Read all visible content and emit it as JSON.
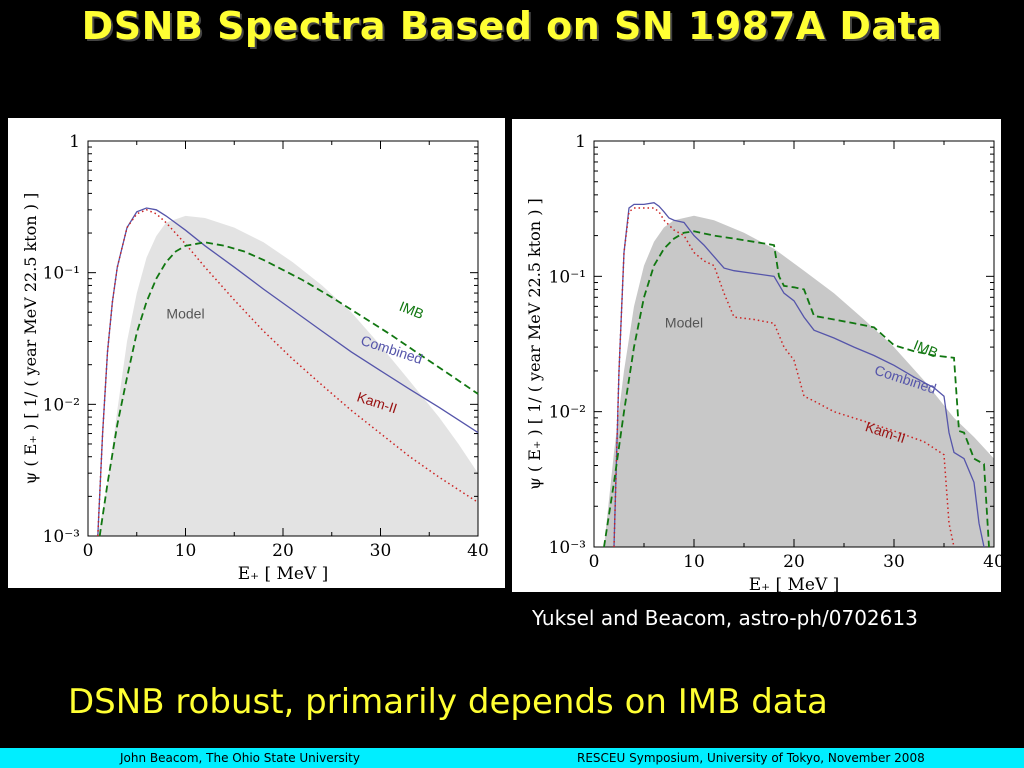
{
  "slide": {
    "title": "DSNB Spectra Based on SN 1987A Data",
    "citation": "Yuksel and Beacom, astro-ph/0702613",
    "summary": "DSNB robust, primarily depends on IMB data",
    "footer_left": "John Beacom, The Ohio State University",
    "footer_right": "RESCEU Symposium, University of Tokyo, November 2008"
  },
  "colors": {
    "background": "#000000",
    "title": "#ffff33",
    "footer_bar": "#00eeff",
    "model_left": "#e3e3e3",
    "model_right": "#c8c8c8",
    "combined": "#5555aa",
    "imb": "#117711",
    "kam": "#cc2222",
    "kam_label": "#991111"
  },
  "chart_data": [
    {
      "type": "line",
      "x_scale": "linear",
      "y_scale": "log",
      "xlim": [
        0,
        40
      ],
      "ylim": [
        0.001,
        1
      ],
      "xticks": [
        "0",
        "10",
        "20",
        "30",
        "40"
      ],
      "yticks": [
        "1",
        "10⁻¹",
        "10⁻²",
        "10⁻³"
      ],
      "xlabel": "E₊ [ MeV ]",
      "ylabel": "ψ ( E₊ )   [ 1/ ( year MeV 22.5 kton ) ]",
      "annotations": [
        {
          "text": "Model",
          "x": 10,
          "y": 0.045
        },
        {
          "text": "IMB",
          "x": 33,
          "y": 0.048
        },
        {
          "text": "Combined",
          "x": 31,
          "y": 0.024
        },
        {
          "text": "Kam-II",
          "x": 29.5,
          "y": 0.0095
        }
      ],
      "series": [
        {
          "name": "Model",
          "style": "area",
          "x": [
            1,
            2,
            3,
            4,
            5,
            6,
            7,
            8,
            10,
            12,
            15,
            18,
            21,
            24,
            27,
            30,
            33,
            36,
            38,
            40
          ],
          "y": [
            0.001,
            0.0025,
            0.009,
            0.03,
            0.07,
            0.13,
            0.19,
            0.24,
            0.27,
            0.26,
            0.22,
            0.17,
            0.12,
            0.08,
            0.05,
            0.028,
            0.015,
            0.008,
            0.005,
            0.003
          ]
        },
        {
          "name": "Combined",
          "style": "solid",
          "x": [
            1,
            1.5,
            2,
            2.5,
            3,
            4,
            5,
            6,
            7,
            8,
            10,
            12,
            15,
            18,
            21,
            24,
            27,
            30,
            33,
            36,
            40
          ],
          "y": [
            0.001,
            0.006,
            0.025,
            0.06,
            0.11,
            0.22,
            0.29,
            0.31,
            0.3,
            0.27,
            0.21,
            0.16,
            0.11,
            0.075,
            0.052,
            0.036,
            0.025,
            0.018,
            0.013,
            0.0095,
            0.0061
          ]
        },
        {
          "name": "Kam-II",
          "style": "dotted",
          "x": [
            1,
            1.5,
            2,
            2.5,
            3,
            4,
            5,
            6,
            7,
            8,
            10,
            12,
            15,
            18,
            21,
            24,
            27,
            30,
            33,
            36,
            40
          ],
          "y": [
            0.001,
            0.006,
            0.025,
            0.06,
            0.11,
            0.22,
            0.28,
            0.3,
            0.28,
            0.24,
            0.165,
            0.11,
            0.062,
            0.036,
            0.022,
            0.014,
            0.009,
            0.006,
            0.004,
            0.0028,
            0.0018
          ]
        },
        {
          "name": "IMB",
          "style": "dashed",
          "x": [
            1.2,
            2,
            3,
            4,
            5,
            6,
            7,
            8,
            9,
            10,
            12,
            14,
            16,
            18,
            20,
            22,
            25,
            28,
            31,
            34,
            37,
            40
          ],
          "y": [
            0.001,
            0.0025,
            0.007,
            0.016,
            0.035,
            0.06,
            0.09,
            0.12,
            0.145,
            0.16,
            0.17,
            0.16,
            0.145,
            0.125,
            0.105,
            0.088,
            0.065,
            0.047,
            0.034,
            0.024,
            0.017,
            0.012
          ]
        }
      ]
    },
    {
      "type": "line",
      "x_scale": "linear",
      "y_scale": "log",
      "xlim": [
        0,
        40
      ],
      "ylim": [
        0.001,
        1
      ],
      "xticks": [
        "0",
        "10",
        "20",
        "30",
        "40"
      ],
      "yticks": [
        "1",
        "10⁻¹",
        "10⁻²",
        "10⁻³"
      ],
      "xlabel": "E₊ [ MeV ]",
      "ylabel": "ψ ( E₊ )   [ 1/ ( year MeV 22.5 kton ) ]",
      "annotations": [
        {
          "text": "Model",
          "x": 9,
          "y": 0.042
        },
        {
          "text": "IMB",
          "x": 33,
          "y": 0.027
        },
        {
          "text": "Combined",
          "x": 31,
          "y": 0.016
        },
        {
          "text": "Kam-II",
          "x": 29,
          "y": 0.0065
        }
      ],
      "series": [
        {
          "name": "Model",
          "style": "area",
          "x": [
            1,
            2,
            3,
            4,
            5,
            6,
            7,
            8,
            10,
            12,
            15,
            18,
            21,
            24,
            27,
            30,
            33,
            36,
            38,
            40
          ],
          "y": [
            0.001,
            0.005,
            0.02,
            0.06,
            0.12,
            0.18,
            0.23,
            0.26,
            0.28,
            0.26,
            0.21,
            0.16,
            0.11,
            0.075,
            0.048,
            0.03,
            0.017,
            0.009,
            0.0065,
            0.0045
          ]
        },
        {
          "name": "Combined",
          "style": "solid",
          "x": [
            2,
            2.5,
            3,
            3.5,
            4,
            5,
            6,
            6.5,
            7,
            7.5,
            8,
            9,
            10,
            11,
            12,
            13,
            14,
            16,
            18,
            19,
            20,
            21,
            22,
            24,
            26,
            28,
            30,
            32,
            34,
            35,
            35.5,
            36,
            37,
            38,
            38.5,
            39
          ],
          "y": [
            0.001,
            0.02,
            0.15,
            0.32,
            0.34,
            0.34,
            0.35,
            0.33,
            0.3,
            0.27,
            0.26,
            0.25,
            0.2,
            0.17,
            0.14,
            0.115,
            0.11,
            0.105,
            0.1,
            0.075,
            0.066,
            0.05,
            0.04,
            0.035,
            0.03,
            0.026,
            0.022,
            0.018,
            0.015,
            0.013,
            0.007,
            0.005,
            0.0045,
            0.003,
            0.0015,
            0.001
          ]
        },
        {
          "name": "Kam-II",
          "style": "dotted",
          "x": [
            2,
            2.5,
            3,
            3.5,
            4,
            5,
            6,
            6.5,
            7,
            8,
            9,
            10,
            11,
            12,
            13,
            14,
            16,
            18,
            19,
            20,
            21,
            22,
            24,
            27,
            30,
            33,
            35,
            35.5,
            36
          ],
          "y": [
            0.001,
            0.02,
            0.15,
            0.3,
            0.32,
            0.32,
            0.32,
            0.3,
            0.26,
            0.22,
            0.2,
            0.15,
            0.13,
            0.12,
            0.075,
            0.05,
            0.048,
            0.045,
            0.03,
            0.024,
            0.013,
            0.012,
            0.01,
            0.0085,
            0.0072,
            0.006,
            0.0048,
            0.0015,
            0.001
          ]
        },
        {
          "name": "IMB",
          "style": "dashed",
          "x": [
            1,
            2,
            3,
            4,
            5,
            6,
            7,
            8,
            9,
            10,
            12,
            14,
            16,
            18,
            18.5,
            19,
            20,
            21,
            22,
            24,
            26,
            28,
            30,
            32,
            34,
            36,
            36.5,
            37,
            38,
            39,
            39.5
          ],
          "y": [
            0.001,
            0.003,
            0.01,
            0.03,
            0.07,
            0.12,
            0.16,
            0.19,
            0.21,
            0.215,
            0.2,
            0.19,
            0.18,
            0.17,
            0.1,
            0.085,
            0.083,
            0.08,
            0.051,
            0.048,
            0.045,
            0.042,
            0.031,
            0.028,
            0.026,
            0.025,
            0.0072,
            0.007,
            0.0045,
            0.0041,
            0.001
          ]
        }
      ]
    }
  ]
}
